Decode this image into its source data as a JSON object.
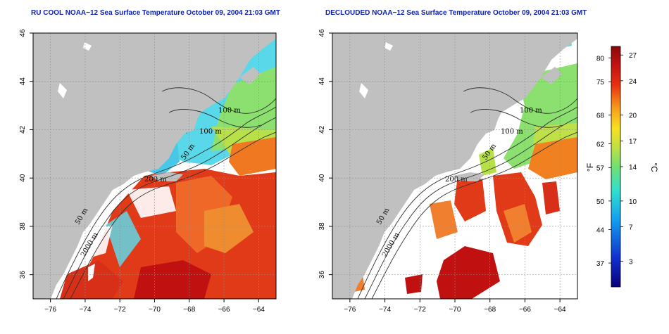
{
  "panels": [
    {
      "title": "RU COOL NOAA−12 Sea Surface Temperature October 09, 2004 21:03 GMT"
    },
    {
      "title": "DECLOUDED NOAA−12 Sea Surface Temperature October 09, 2004 21:03 GMT"
    }
  ],
  "axes": {
    "x_ticks": [
      "−76",
      "−74",
      "−72",
      "−70",
      "−68",
      "−66",
      "−64"
    ],
    "y_ticks": [
      "36",
      "38",
      "40",
      "42",
      "44",
      "46"
    ],
    "x_range": [
      -77,
      -63
    ],
    "y_range": [
      35,
      46
    ],
    "grid": "dotted"
  },
  "contours": {
    "labels_left": [
      "100 m",
      "100 m",
      "50 m",
      "200 m",
      "50 m",
      "2000 m"
    ],
    "labels_right": [
      "100 m",
      "100 m",
      "50 m",
      "200 m",
      "50 m",
      "2000 m"
    ]
  },
  "colorbar": {
    "fahrenheit_ticks": [
      "80",
      "75",
      "68",
      "62",
      "57",
      "50",
      "44",
      "37"
    ],
    "celsius_ticks": [
      "27",
      "24",
      "20",
      "17",
      "14",
      "10",
      "7",
      "3"
    ],
    "fahrenheit_unit": "°F",
    "celsius_unit": "°C",
    "range_c": [
      0,
      28
    ]
  },
  "colors": {
    "land": "#c0c0c0",
    "title": "#0a1fb0",
    "cold": "#1030c0",
    "cool": "#30d0f0",
    "mid": "#a0e050",
    "warm": "#f0a020",
    "hot": "#d82010",
    "very_hot": "#a00808"
  }
}
